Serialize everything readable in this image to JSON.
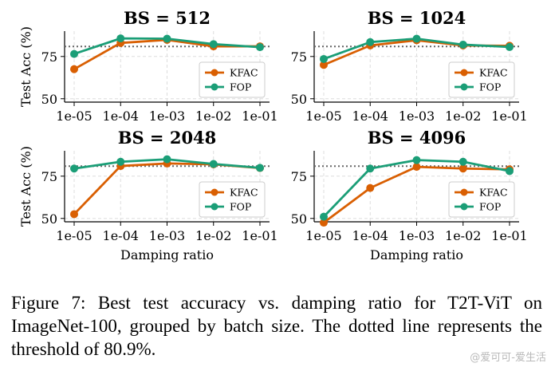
{
  "chart_data": [
    {
      "type": "line",
      "title": "BS = 512",
      "x": [
        "1e-05",
        "1e-04",
        "1e-03",
        "1e-02",
        "1e-01"
      ],
      "ylabel": "Test Acc (%)",
      "xlabel": "",
      "ylim": [
        48,
        90
      ],
      "yticks": [
        "75",
        "50"
      ],
      "threshold": 80.9,
      "legend": "lower-right",
      "series": [
        {
          "name": "KFAC",
          "color": "#d95f02",
          "values": [
            67.5,
            83.0,
            84.8,
            81.0,
            81.0
          ]
        },
        {
          "name": "FOP",
          "color": "#1b9e77",
          "values": [
            76.5,
            85.7,
            85.5,
            82.3,
            80.5
          ]
        }
      ]
    },
    {
      "type": "line",
      "title": "BS = 1024",
      "x": [
        "1e-05",
        "1e-04",
        "1e-03",
        "1e-02",
        "1e-01"
      ],
      "ylabel": "",
      "xlabel": "",
      "ylim": [
        48,
        90
      ],
      "yticks": [
        "75",
        "50"
      ],
      "threshold": 80.9,
      "legend": "lower-right",
      "series": [
        {
          "name": "KFAC",
          "color": "#d95f02",
          "values": [
            70.0,
            81.5,
            84.6,
            81.5,
            81.3
          ]
        },
        {
          "name": "FOP",
          "color": "#1b9e77",
          "values": [
            73.5,
            83.5,
            85.5,
            82.0,
            80.6
          ]
        }
      ]
    },
    {
      "type": "line",
      "title": "BS = 2048",
      "x": [
        "1e-05",
        "1e-04",
        "1e-03",
        "1e-02",
        "1e-01"
      ],
      "ylabel": "Test Acc (%)",
      "xlabel": "Damping ratio",
      "ylim": [
        48,
        90
      ],
      "yticks": [
        "75",
        "50"
      ],
      "threshold": 80.9,
      "legend": "lower-right",
      "series": [
        {
          "name": "KFAC",
          "color": "#d95f02",
          "values": [
            52.5,
            81.0,
            82.5,
            82.0,
            79.8
          ]
        },
        {
          "name": "FOP",
          "color": "#1b9e77",
          "values": [
            79.5,
            83.5,
            85.0,
            82.2,
            79.9
          ]
        }
      ]
    },
    {
      "type": "line",
      "title": "BS = 4096",
      "x": [
        "1e-05",
        "1e-04",
        "1e-03",
        "1e-02",
        "1e-01"
      ],
      "ylabel": "",
      "xlabel": "Damping ratio",
      "ylim": [
        48,
        90
      ],
      "yticks": [
        "75",
        "50"
      ],
      "threshold": 80.9,
      "legend": "lower-right",
      "series": [
        {
          "name": "KFAC",
          "color": "#d95f02",
          "values": [
            47.5,
            68.0,
            80.5,
            79.5,
            79.0
          ]
        },
        {
          "name": "FOP",
          "color": "#1b9e77",
          "values": [
            51.0,
            79.5,
            84.5,
            83.5,
            78.0
          ]
        }
      ]
    }
  ],
  "caption": "Figure 7: Best test accuracy vs. damping ratio for T2T-ViT on ImageNet-100, grouped by batch size. The dotted line represents the threshold of 80.9%.",
  "watermark": "@爱可可-爱生活"
}
